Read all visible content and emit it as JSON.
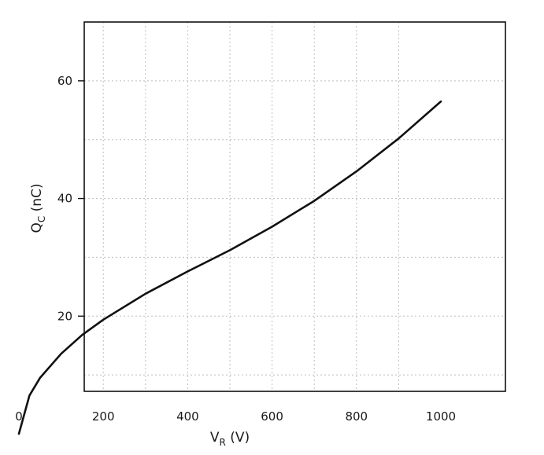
{
  "chart_data": {
    "type": "line",
    "title": "",
    "xlabel_main": "V",
    "xlabel_sub": "R",
    "xlabel_unit": " (V)",
    "ylabel_main": "Q",
    "ylabel_sub": "C",
    "ylabel_unit": " (nC)",
    "xlim": [
      0,
      1000
    ],
    "ylim": [
      0,
      70
    ],
    "x_ticks": [
      0,
      200,
      400,
      600,
      800,
      1000
    ],
    "x_tick_labels": [
      "0",
      "200",
      "400",
      "600",
      "800",
      "1000"
    ],
    "y_ticks": [
      20,
      40,
      60
    ],
    "y_tick_labels": [
      "20",
      "40",
      "60"
    ],
    "grid": true,
    "legend": "none",
    "series": [
      {
        "color": "#111111",
        "x": [
          0,
          25,
          50,
          100,
          150,
          200,
          300,
          400,
          500,
          600,
          700,
          800,
          900,
          1000
        ],
        "y": [
          0,
          6.5,
          9.5,
          13.6,
          16.8,
          19.4,
          23.8,
          27.6,
          31.2,
          35.2,
          39.6,
          44.6,
          50.2,
          56.5
        ]
      }
    ]
  }
}
